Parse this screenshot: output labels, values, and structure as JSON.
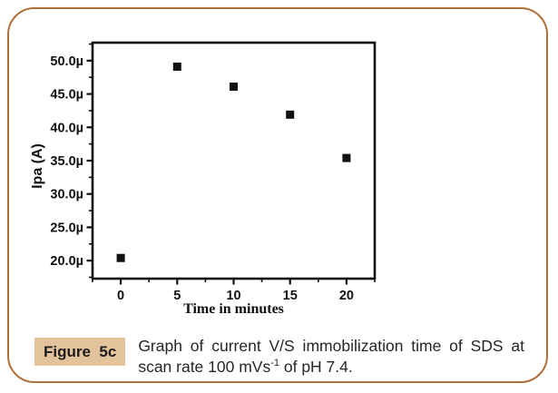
{
  "figure": {
    "label": "Figure  5c",
    "caption_line1": "Graph of current V/S immobilization time of SDS at",
    "caption_line2_pre": "scan rate 100 mVs",
    "caption_superscript": "-1",
    "caption_line2_post": " of pH 7.4."
  },
  "colors": {
    "border": "#ae6f3a",
    "caption_box_bg": "#e3c39b",
    "text": "#262626",
    "axis": "#111111",
    "marker": "#111111"
  },
  "chart_data": {
    "type": "scatter",
    "x": [
      0,
      5,
      10,
      15,
      20
    ],
    "y": [
      20.4,
      49.1,
      46.1,
      41.9,
      35.4
    ],
    "y_unit": "µA",
    "title": "",
    "xlabel": "Time in minutes",
    "ylabel": "Ipa (A)",
    "x_ticks": [
      0,
      5,
      10,
      15,
      20
    ],
    "x_tick_labels": [
      "0",
      "5",
      "10",
      "15",
      "20"
    ],
    "y_ticks": [
      20,
      25,
      30,
      35,
      40,
      45,
      50
    ],
    "y_tick_labels": [
      "20.0µ",
      "25.0µ",
      "30.0µ",
      "35.0µ",
      "40.0µ",
      "45.0µ",
      "50.0µ"
    ],
    "xlim": [
      -2.5,
      22.5
    ],
    "ylim": [
      17.3,
      52.7
    ],
    "minor_tick_step_x": 2.5,
    "minor_tick_step_y": 2.5,
    "grid": false,
    "legend": false,
    "marker": "filled-square",
    "marker_size": 9
  }
}
